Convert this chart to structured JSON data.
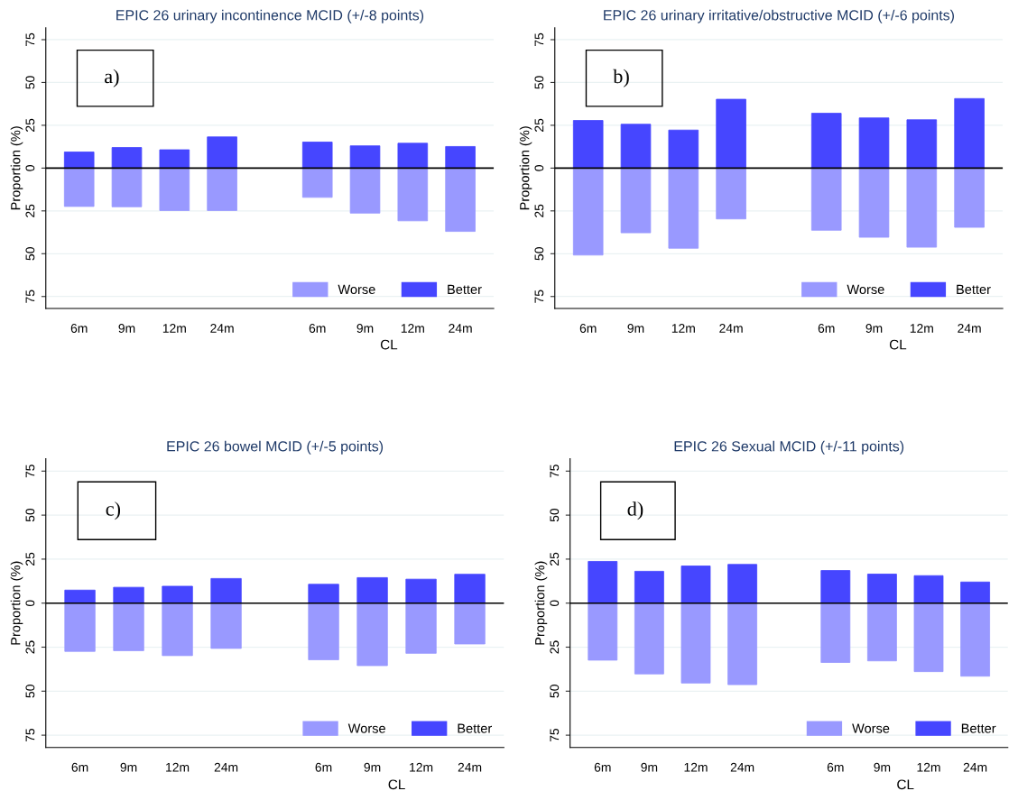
{
  "chart_data": [
    {
      "type": "bar",
      "title": "EPIC 26 urinary incontinence MCID (+/-8 points)",
      "ylabel": "Proportion (%)",
      "xlabel": "CL",
      "categories": [
        "6m",
        "9m",
        "12m",
        "24m",
        null,
        "6m",
        "9m",
        "12m",
        "24m"
      ],
      "series": [
        {
          "name": "Worse",
          "color": "#9999ff",
          "values": [
            -22.4,
            -22.6,
            -24.8,
            -24.8,
            null,
            -17.1,
            -26.3,
            -30.8,
            -37.0
          ]
        },
        {
          "name": "Better",
          "color": "#4646ff",
          "values": [
            9.4,
            12.0,
            10.7,
            18.2,
            null,
            15.2,
            13.0,
            14.5,
            12.6
          ]
        }
      ],
      "ylim": [
        -82,
        82
      ],
      "yticks": [
        {
          "value": -75,
          "label": "75"
        },
        {
          "value": -50,
          "label": "50"
        },
        {
          "value": -25,
          "label": "25"
        },
        0,
        25,
        50,
        75
      ],
      "grid": "y",
      "legend": "bottom right",
      "stacked": true,
      "ref_lines": [
        {
          "axis": "y",
          "value": 0,
          "color": "#000000"
        }
      ],
      "annotations": [
        "a)"
      ]
    },
    {
      "type": "bar",
      "title": "EPIC 26 urinary irritative/obstructive MCID (+/-6 points)",
      "ylabel": "Proportion (%)",
      "xlabel": "CL",
      "categories": [
        "6m",
        "9m",
        "12m",
        "24m",
        null,
        "6m",
        "9m",
        "12m",
        "24m"
      ],
      "series": [
        {
          "name": "Worse",
          "color": "#9999ff",
          "values": [
            -50.8,
            -37.8,
            -46.8,
            -29.7,
            null,
            -36.3,
            -40.4,
            -46.2,
            -34.6
          ]
        },
        {
          "name": "Better",
          "color": "#4646ff",
          "values": [
            27.8,
            25.6,
            22.2,
            40.2,
            null,
            32.0,
            29.3,
            28.2,
            40.6
          ]
        }
      ],
      "ylim": [
        -82,
        82
      ],
      "yticks": [
        {
          "value": -75,
          "label": "75"
        },
        {
          "value": -50,
          "label": "50"
        },
        {
          "value": -25,
          "label": "25"
        },
        0,
        25,
        50,
        75
      ],
      "grid": "y",
      "legend": "bottom right",
      "stacked": true,
      "ref_lines": [
        {
          "axis": "y",
          "value": 0,
          "color": "#000000"
        }
      ],
      "annotations": [
        "b)"
      ]
    },
    {
      "type": "bar",
      "title": "EPIC 26 bowel MCID (+/-5 points)",
      "ylabel": "Proportion (%)",
      "xlabel": "CL",
      "categories": [
        "6m",
        "9m",
        "12m",
        "24m",
        null,
        "6m",
        "9m",
        "12m",
        "24m"
      ],
      "series": [
        {
          "name": "Worse",
          "color": "#9999ff",
          "values": [
            -27.4,
            -27.0,
            -29.8,
            -25.7,
            null,
            -32.2,
            -35.5,
            -28.5,
            -23.2
          ]
        },
        {
          "name": "Better",
          "color": "#4646ff",
          "values": [
            7.4,
            9.0,
            9.6,
            14.0,
            null,
            10.7,
            14.5,
            13.6,
            16.4
          ]
        }
      ],
      "ylim": [
        -82,
        82
      ],
      "yticks": [
        {
          "value": -75,
          "label": "75"
        },
        {
          "value": -50,
          "label": "50"
        },
        {
          "value": -25,
          "label": "25"
        },
        0,
        25,
        50,
        75
      ],
      "grid": "y",
      "legend": "bottom right",
      "stacked": true,
      "ref_lines": [
        {
          "axis": "y",
          "value": 0,
          "color": "#000000"
        }
      ],
      "annotations": [
        "c)"
      ]
    },
    {
      "type": "bar",
      "title": "EPIC 26 Sexual MCID (+/-11 points)",
      "ylabel": "Proportion (%)",
      "xlabel": "CL",
      "categories": [
        "6m",
        "9m",
        "12m",
        "24m",
        null,
        "6m",
        "9m",
        "12m",
        "24m"
      ],
      "series": [
        {
          "name": "Worse",
          "color": "#9999ff",
          "values": [
            -32.4,
            -40.2,
            -45.4,
            -46.3,
            null,
            -33.7,
            -32.8,
            -38.9,
            -41.5
          ]
        },
        {
          "name": "Better",
          "color": "#4646ff",
          "values": [
            23.7,
            18.1,
            21.1,
            22.0,
            null,
            18.5,
            16.5,
            15.6,
            12.0
          ]
        }
      ],
      "ylim": [
        -82,
        82
      ],
      "yticks": [
        {
          "value": -75,
          "label": "75"
        },
        {
          "value": -50,
          "label": "50"
        },
        {
          "value": -25,
          "label": "25"
        },
        0,
        25,
        50,
        75
      ],
      "grid": "y",
      "legend": "bottom right",
      "stacked": true,
      "ref_lines": [
        {
          "axis": "y",
          "value": 0,
          "color": "#000000"
        }
      ],
      "annotations": [
        "d)"
      ]
    }
  ]
}
